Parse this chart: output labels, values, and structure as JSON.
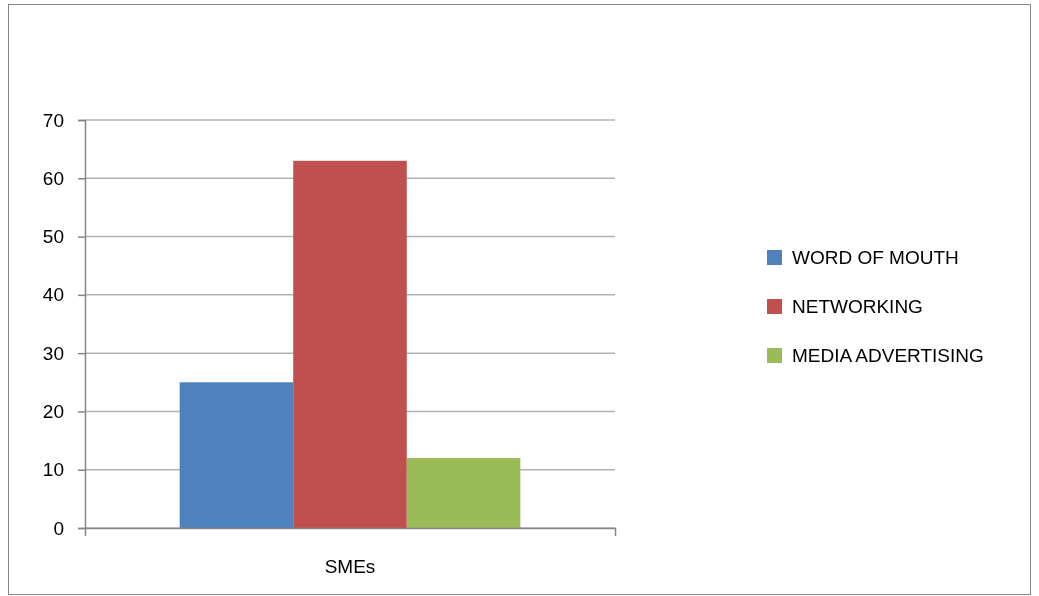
{
  "chart_data": {
    "type": "bar",
    "categories": [
      "SMEs"
    ],
    "series": [
      {
        "name": "WORD OF MOUTH",
        "color": "#4f81bd",
        "values": [
          25
        ]
      },
      {
        "name": "NETWORKING",
        "color": "#c0504d",
        "values": [
          63
        ]
      },
      {
        "name": "MEDIA ADVERTISING",
        "color": "#9bbb59",
        "values": [
          12
        ]
      }
    ],
    "ylim": [
      0,
      70
    ],
    "yticks": [
      0,
      10,
      20,
      30,
      40,
      50,
      60,
      70
    ],
    "grid": "y",
    "legend": "right"
  }
}
